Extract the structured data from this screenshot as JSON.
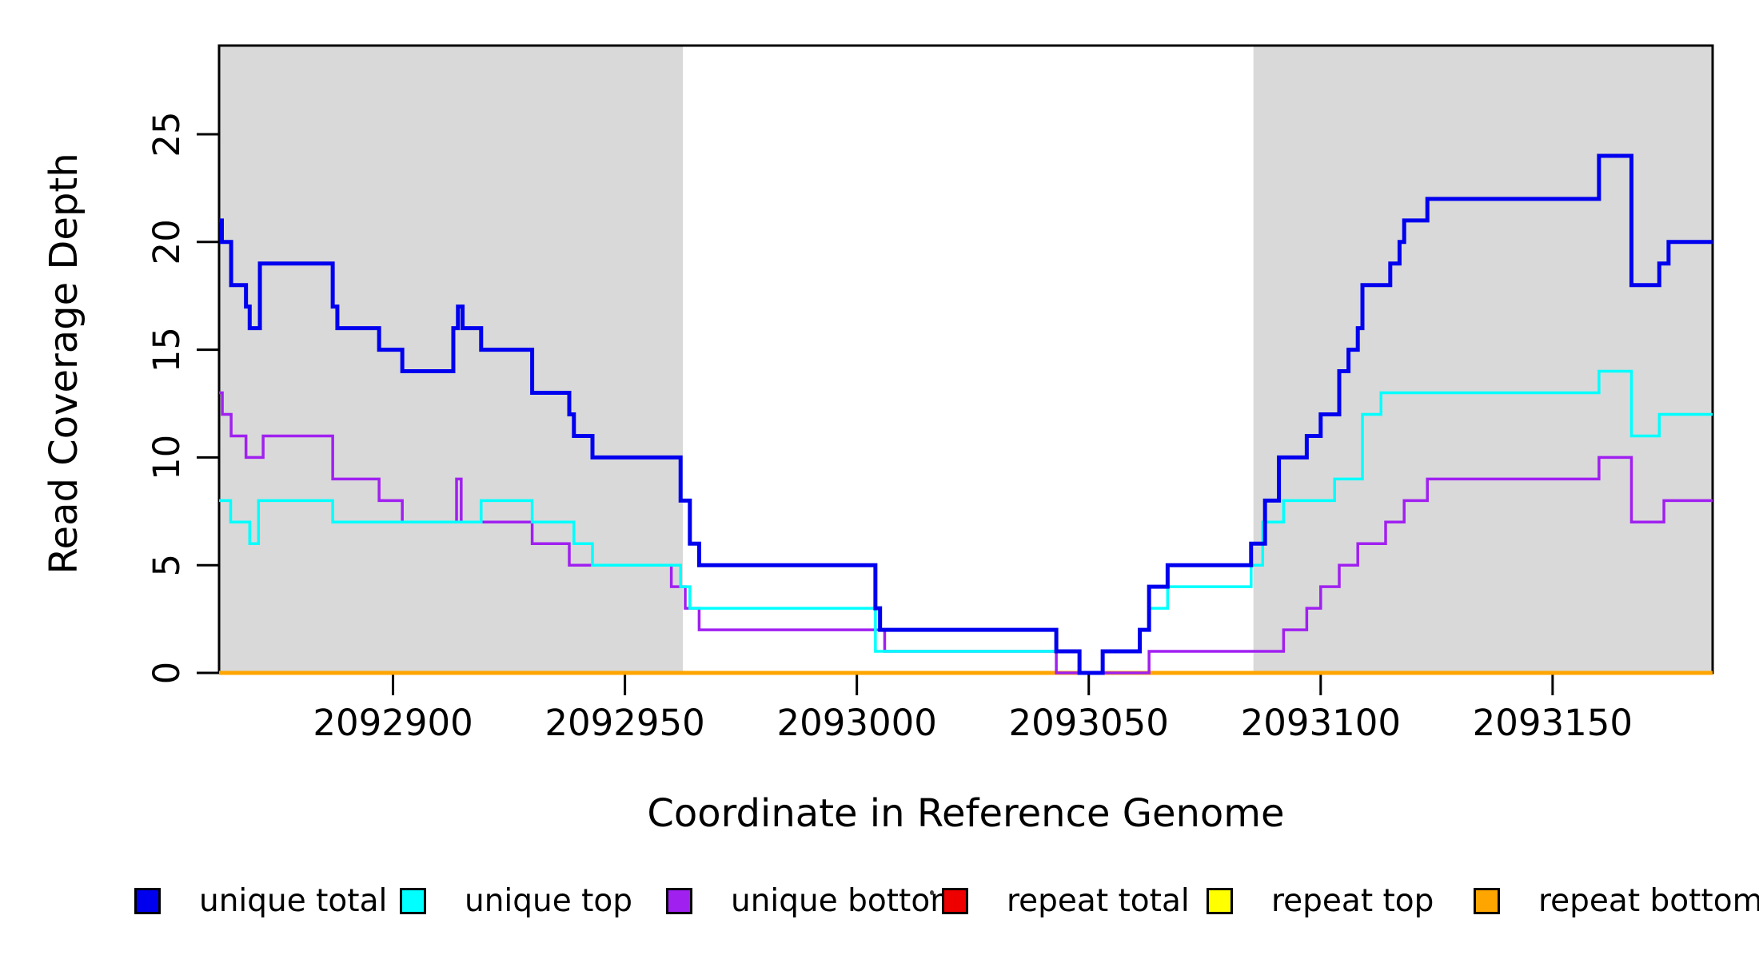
{
  "chart_data": {
    "type": "line",
    "subtype": "step-coverage-plot",
    "title": "",
    "xlabel": "Coordinate in Reference Genome",
    "ylabel": "Read Coverage Depth",
    "xlim": [
      2092862.5,
      2093184.5
    ],
    "ylim": [
      0,
      29.1
    ],
    "grid": false,
    "x_ticks": [
      2092900,
      2092950,
      2093000,
      2093050,
      2093100,
      2093150
    ],
    "y_ticks": [
      0,
      5,
      10,
      15,
      20,
      25
    ],
    "colors": {
      "shaded_region": "#d9d9d9",
      "axis": "#000000",
      "background": "#ffffff"
    },
    "shaded_regions": [
      {
        "name": "left-repeat-region",
        "from": 2092862.5,
        "to": 2092962.5
      },
      {
        "name": "right-repeat-region",
        "from": 2093085.5,
        "to": 2093184.5
      }
    ],
    "legend_position": "bottom",
    "legend": [
      {
        "label": "unique total",
        "color": "#0000ee"
      },
      {
        "label": "unique top",
        "color": "#00ffff"
      },
      {
        "label": "unique bottom",
        "color": "#a020f0"
      },
      {
        "label": "repeat total",
        "color": "#ee0000"
      },
      {
        "label": "repeat top",
        "color": "#ffff00"
      },
      {
        "label": "repeat bottom",
        "color": "#ffa500"
      }
    ],
    "series": [
      {
        "name": "repeat total",
        "color": "#ee0000",
        "width": 4,
        "steps": [
          [
            2092862.5,
            0
          ]
        ]
      },
      {
        "name": "repeat top",
        "color": "#ffff00",
        "width": 4,
        "steps": [
          [
            2092862.5,
            0
          ]
        ]
      },
      {
        "name": "repeat bottom",
        "color": "#ffa500",
        "width": 5,
        "steps": [
          [
            2092862.5,
            0
          ]
        ]
      },
      {
        "name": "unique bottom",
        "color": "#a020f0",
        "width": 3.5,
        "steps": [
          [
            2092862.5,
            13
          ],
          [
            2092863.2,
            12
          ],
          [
            2092865.1,
            11
          ],
          [
            2092868.3,
            10
          ],
          [
            2092872,
            11
          ],
          [
            2092887,
            9
          ],
          [
            2092897,
            8
          ],
          [
            2092902,
            7
          ],
          [
            2092913.7,
            9
          ],
          [
            2092914.7,
            7
          ],
          [
            2092930,
            6
          ],
          [
            2092938,
            5
          ],
          [
            2092960,
            4
          ],
          [
            2092963,
            3
          ],
          [
            2092966,
            2
          ],
          [
            2093006,
            1
          ],
          [
            2093043,
            0
          ],
          [
            2093063,
            1
          ],
          [
            2093092,
            2
          ],
          [
            2093097,
            3
          ],
          [
            2093100,
            4
          ],
          [
            2093104,
            5
          ],
          [
            2093108,
            6
          ],
          [
            2093114,
            7
          ],
          [
            2093118,
            8
          ],
          [
            2093123,
            9
          ],
          [
            2093160,
            10
          ],
          [
            2093167,
            7
          ],
          [
            2093174,
            8
          ]
        ]
      },
      {
        "name": "unique top",
        "color": "#00ffff",
        "width": 3.5,
        "steps": [
          [
            2092862.5,
            8
          ],
          [
            2092865,
            7
          ],
          [
            2092869.1,
            6
          ],
          [
            2092871,
            8
          ],
          [
            2092887,
            7
          ],
          [
            2092919,
            8
          ],
          [
            2092930,
            7
          ],
          [
            2092939,
            6
          ],
          [
            2092943,
            5
          ],
          [
            2092962,
            4
          ],
          [
            2092964,
            3
          ],
          [
            2093004,
            1
          ],
          [
            2093048,
            0
          ],
          [
            2093053,
            1
          ],
          [
            2093061,
            2
          ],
          [
            2093063,
            3
          ],
          [
            2093067,
            4
          ],
          [
            2093085,
            5
          ],
          [
            2093087.5,
            7
          ],
          [
            2093092,
            8
          ],
          [
            2093103,
            9
          ],
          [
            2093109,
            12
          ],
          [
            2093113,
            13
          ],
          [
            2093160,
            14
          ],
          [
            2093167,
            11
          ],
          [
            2093173,
            12
          ]
        ]
      },
      {
        "name": "unique total",
        "color": "#0000ee",
        "width": 5,
        "steps": [
          [
            2092862.5,
            21
          ],
          [
            2092863.1,
            20
          ],
          [
            2092865.1,
            18
          ],
          [
            2092868.3,
            17
          ],
          [
            2092869.1,
            16
          ],
          [
            2092871.3,
            19
          ],
          [
            2092887,
            17
          ],
          [
            2092888,
            16
          ],
          [
            2092897,
            15
          ],
          [
            2092902,
            14
          ],
          [
            2092913,
            16
          ],
          [
            2092914,
            17
          ],
          [
            2092915,
            16
          ],
          [
            2092919,
            15
          ],
          [
            2092930,
            13
          ],
          [
            2092938,
            12
          ],
          [
            2092939,
            11
          ],
          [
            2092943,
            10
          ],
          [
            2092962,
            8
          ],
          [
            2092964,
            6
          ],
          [
            2092966,
            5
          ],
          [
            2093004,
            3
          ],
          [
            2093005,
            2
          ],
          [
            2093043,
            1
          ],
          [
            2093048,
            0
          ],
          [
            2093053,
            1
          ],
          [
            2093061,
            2
          ],
          [
            2093063,
            4
          ],
          [
            2093067,
            5
          ],
          [
            2093085,
            6
          ],
          [
            2093088,
            8
          ],
          [
            2093091,
            10
          ],
          [
            2093097,
            11
          ],
          [
            2093100,
            12
          ],
          [
            2093104,
            14
          ],
          [
            2093106,
            15
          ],
          [
            2093108,
            16
          ],
          [
            2093109,
            18
          ],
          [
            2093115,
            19
          ],
          [
            2093117,
            20
          ],
          [
            2093118,
            21
          ],
          [
            2093123,
            22
          ],
          [
            2093160,
            24
          ],
          [
            2093167,
            18
          ],
          [
            2093173,
            19
          ],
          [
            2093175,
            20
          ]
        ]
      }
    ]
  }
}
